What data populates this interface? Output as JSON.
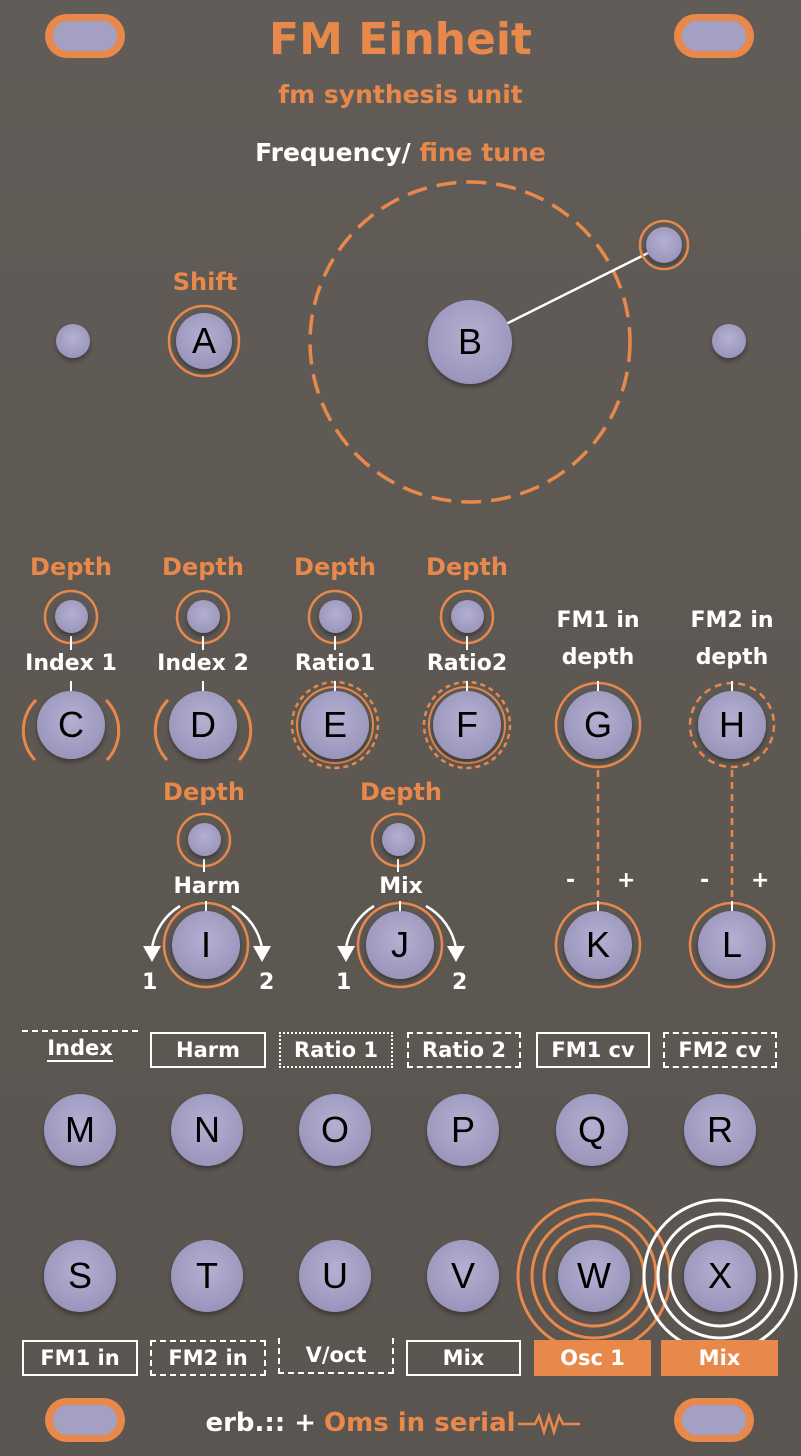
{
  "header": {
    "title": "FM Einheit",
    "subtitle": "fm synthesis unit",
    "frequency_label": "Frequency/",
    "fine_tune_label": "fine tune"
  },
  "labels": {
    "shift": "Shift",
    "depth": "Depth",
    "index1": "Index 1",
    "index2": "Index 2",
    "ratio1": "Ratio1",
    "ratio2": "Ratio2",
    "fm1_in_depth_line1": "FM1 in",
    "fm1_in_depth_line2": "depth",
    "fm2_in_depth_line1": "FM2 in",
    "fm2_in_depth_line2": "depth",
    "harm": "Harm",
    "mix": "Mix",
    "one": "1",
    "two": "2",
    "minus": "-",
    "plus": "+"
  },
  "controls": {
    "A": "A",
    "B": "B",
    "C": "C",
    "D": "D",
    "E": "E",
    "F": "F",
    "G": "G",
    "H": "H",
    "I": "I",
    "J": "J",
    "K": "K",
    "L": "L",
    "M": "M",
    "N": "N",
    "O": "O",
    "P": "P",
    "Q": "Q",
    "R": "R",
    "S": "S",
    "T": "T",
    "U": "U",
    "V": "V",
    "W": "W",
    "X": "X"
  },
  "jack_labels_top": [
    "Index",
    "Harm",
    "Ratio 1",
    "Ratio 2",
    "FM1 cv",
    "FM2 cv"
  ],
  "jack_labels_bottom": [
    "FM1 in",
    "FM2 in",
    "V/oct",
    "Mix",
    "Osc 1",
    "Mix"
  ],
  "footer": {
    "brand": "erb.:: +",
    "partner": "Oms in serial"
  },
  "colors": {
    "panel": "#5f5955",
    "accent": "#e8894b",
    "knob": "#a4a0c4",
    "label": "#ffffff"
  }
}
